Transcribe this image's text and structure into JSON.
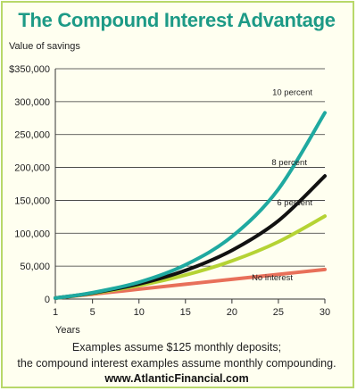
{
  "header": {
    "title": "The Compound Interest Advantage"
  },
  "chart_data": {
    "type": "line",
    "ylabel": "Value of savings",
    "xlabel": "Years",
    "xlim": [
      1,
      30
    ],
    "ylim": [
      0,
      350000
    ],
    "x_ticks": [
      1,
      5,
      10,
      15,
      20,
      25,
      30
    ],
    "y_ticks": [
      0,
      50000,
      100000,
      150000,
      200000,
      250000,
      300000,
      350000
    ],
    "y_tick_labels": [
      "0",
      "50,000",
      "100,000",
      "150,000",
      "200,000",
      "250,000",
      "300,000",
      "$350,000"
    ],
    "grid": "horizontal",
    "x": [
      1,
      5,
      10,
      15,
      20,
      25,
      30
    ],
    "series": [
      {
        "name": "10 percent",
        "color": "#1fa9a0",
        "values": [
          1500,
          9700,
          25600,
          52000,
          95000,
          167000,
          283000
        ]
      },
      {
        "name": "8 percent",
        "color": "#111111",
        "values": [
          1500,
          9200,
          23000,
          43500,
          74000,
          119000,
          187000
        ]
      },
      {
        "name": "6 percent",
        "color": "#b5d334",
        "values": [
          1500,
          8700,
          20500,
          36500,
          58000,
          87000,
          126000
        ]
      },
      {
        "name": "No interest",
        "color": "#e8705a",
        "values": [
          1500,
          7500,
          15000,
          22500,
          30000,
          37500,
          45000
        ]
      }
    ]
  },
  "footer": {
    "note_line1": "Examples assume $125 monthly deposits;",
    "note_line2": "the compound interest examples assume monthly compounding.",
    "website": "www.AtlanticFinancial.com"
  }
}
